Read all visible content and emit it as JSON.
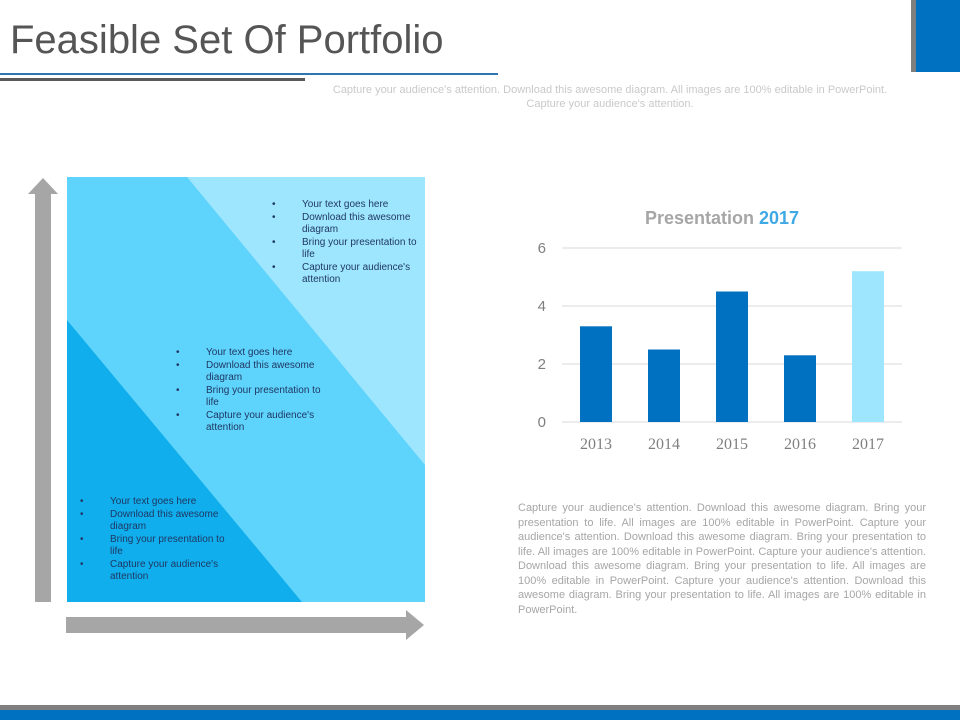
{
  "header": {
    "title": "Feasible Set Of Portfolio",
    "subtitle": "Capture your audience's attention. Download this awesome diagram. All images are 100% editable in PowerPoint. Capture your audience's attention."
  },
  "diagram": {
    "colors": {
      "light": "#9ee6fd",
      "mid": "#5ed3fb",
      "dark": "#10aeec",
      "arrow": "#a6a6a6",
      "text": "#1f3864"
    },
    "regions": [
      {
        "name": "top-region",
        "bullets": [
          "Your text goes here",
          "Download this awesome diagram",
          "Bring your presentation to life",
          "Capture your audience's attention"
        ]
      },
      {
        "name": "middle-region",
        "bullets": [
          "Your text goes here",
          "Download this awesome diagram",
          "Bring your presentation to life",
          "Capture your audience's attention"
        ]
      },
      {
        "name": "bottom-region",
        "bullets": [
          "Your text goes here",
          "Download this awesome diagram",
          "Bring your presentation to life",
          "Capture your audience's attention"
        ]
      }
    ]
  },
  "chart_data": {
    "type": "bar",
    "title_prefix": "Presentation",
    "title_highlight": "2017",
    "categories": [
      "2013",
      "2014",
      "2015",
      "2016",
      "2017"
    ],
    "values": [
      3.3,
      2.5,
      4.5,
      2.3,
      5.2
    ],
    "bar_colors": [
      "#0070c0",
      "#0070c0",
      "#0070c0",
      "#0070c0",
      "#9ee6fd"
    ],
    "ylim": [
      0,
      6
    ],
    "yticks": [
      "0",
      "2",
      "4",
      "6"
    ],
    "grid": true
  },
  "body_text": "Capture your audience's attention. Download this awesome diagram. Bring your presentation to life. All images are 100% editable in PowerPoint. Capture your audience's attention. Download this awesome diagram. Bring your presentation to life. All images are 100% editable in PowerPoint. Capture your audience's attention. Download this awesome diagram. Bring your presentation to life. All images are 100% editable in PowerPoint. Capture your audience's attention. Download this awesome diagram. Bring your presentation to life. All images are 100% editable in PowerPoint."
}
